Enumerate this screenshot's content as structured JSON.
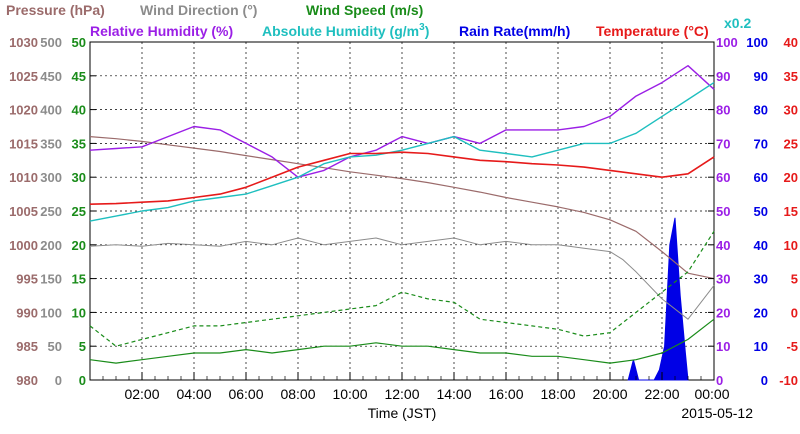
{
  "chart_data": {
    "type": "line",
    "title": "",
    "xlabel": "Time (JST)",
    "date_label": "2015-05-12",
    "legend": {
      "pressure": "Pressure (hPa)",
      "wind_direction": "Wind Direction (°)",
      "wind_speed": "Wind Speed (m/s)",
      "rel_humidity": "Relative Humidity (%)",
      "abs_humidity": "Absolute Humidity (g/m",
      "abs_humidity_exp": "3",
      "abs_humidity_close": ")",
      "rain_rate": "Rain Rate(mm/h)",
      "temperature": "Temperature (°C)",
      "scale_note": "x0.2"
    },
    "colors": {
      "pressure": "#9b6b6b",
      "wind_direction": "#8c8c8c",
      "wind_speed": "#1a8c1a",
      "rel_humidity": "#9b1fe6",
      "abs_humidity": "#1fbfbf",
      "rain_rate": "#0000e6",
      "temperature": "#e61a1a"
    },
    "x_ticks": [
      "02:00",
      "04:00",
      "06:00",
      "08:00",
      "10:00",
      "12:00",
      "14:00",
      "16:00",
      "18:00",
      "20:00",
      "22:00",
      "00:00"
    ],
    "x_range_hours": [
      0,
      24
    ],
    "axes": {
      "pressure": {
        "range": [
          980,
          1030
        ],
        "ticks": [
          "1030",
          "1025",
          "1020",
          "1015",
          "1010",
          "1005",
          "1000",
          "995",
          "990",
          "985",
          "980"
        ]
      },
      "wind_direction": {
        "range": [
          0,
          500
        ],
        "ticks": [
          "500",
          "450",
          "400",
          "350",
          "300",
          "250",
          "200",
          "150",
          "100",
          "50",
          "0"
        ]
      },
      "wind_speed": {
        "range": [
          0,
          50
        ],
        "ticks": [
          "50",
          "45",
          "40",
          "35",
          "30",
          "25",
          "20",
          "15",
          "10",
          "5",
          "0"
        ]
      },
      "rel_humidity": {
        "range": [
          0,
          100
        ],
        "ticks": [
          "100",
          "90",
          "80",
          "70",
          "60",
          "50",
          "40",
          "30",
          "20",
          "10",
          "0"
        ]
      },
      "rain_rate": {
        "range": [
          0,
          100
        ],
        "ticks": [
          "100",
          "90",
          "80",
          "70",
          "60",
          "50",
          "40",
          "30",
          "20",
          "10",
          "0"
        ]
      },
      "temperature": {
        "range": [
          -10,
          40
        ],
        "ticks": [
          "40",
          "35",
          "30",
          "25",
          "20",
          "15",
          "10",
          "5",
          "0",
          "-5",
          "-10"
        ]
      }
    },
    "series": [
      {
        "name": "Pressure (hPa)",
        "key": "pressure",
        "axis": "pressure",
        "x": [
          0,
          1,
          2,
          3,
          4,
          5,
          6,
          7,
          8,
          9,
          10,
          11,
          12,
          13,
          14,
          15,
          16,
          17,
          18,
          19,
          20,
          21,
          22,
          23,
          24
        ],
        "y": [
          1016,
          1015.7,
          1015.3,
          1014.8,
          1014.3,
          1013.8,
          1013.2,
          1012.6,
          1012,
          1011.4,
          1010.8,
          1010.3,
          1009.8,
          1009.2,
          1008.5,
          1007.8,
          1007,
          1006.3,
          1005.6,
          1004.8,
          1003.7,
          1002,
          999,
          995.8,
          995
        ]
      },
      {
        "name": "Wind Direction (°)",
        "key": "wind_direction",
        "axis": "wind_direction",
        "x": [
          0,
          1,
          2,
          3,
          4,
          5,
          6,
          7,
          8,
          9,
          10,
          11,
          12,
          13,
          14,
          15,
          16,
          17,
          18,
          19,
          20,
          20.5,
          21,
          22,
          23,
          24
        ],
        "y": [
          198,
          200,
          198,
          202,
          200,
          198,
          205,
          200,
          210,
          200,
          205,
          210,
          200,
          205,
          210,
          200,
          205,
          200,
          200,
          195,
          190,
          178,
          160,
          120,
          90,
          140
        ]
      },
      {
        "name": "Wind Speed (m/s)",
        "key": "wind_speed",
        "axis": "wind_speed",
        "x": [
          0,
          1,
          2,
          3,
          4,
          5,
          6,
          7,
          8,
          9,
          10,
          11,
          12,
          13,
          14,
          15,
          16,
          17,
          18,
          19,
          20,
          21,
          22,
          23,
          24
        ],
        "y": [
          3,
          2.5,
          3,
          3.5,
          4,
          4,
          4.5,
          4,
          4.5,
          5,
          5,
          5.5,
          5,
          5,
          4.5,
          4,
          4,
          3.5,
          3.5,
          3,
          2.5,
          3,
          4,
          6,
          9
        ]
      },
      {
        "name": "Wind Speed (m/s)",
        "key": "wind_speed_max",
        "axis": "wind_speed",
        "x": [
          0,
          1,
          2,
          3,
          4,
          5,
          6,
          7,
          8,
          9,
          10,
          11,
          12,
          13,
          14,
          15,
          16,
          17,
          18,
          19,
          20,
          21,
          22,
          23,
          24
        ],
        "y": [
          8,
          5,
          6,
          7,
          8,
          8,
          8.5,
          9,
          9.5,
          10,
          10.5,
          11,
          13,
          12,
          11.5,
          9,
          8.5,
          8,
          7.5,
          6.5,
          7,
          10,
          13,
          16,
          22
        ]
      },
      {
        "name": "Relative Humidity (%)",
        "key": "rel_humidity",
        "axis": "rel_humidity",
        "x": [
          0,
          1,
          2,
          3,
          4,
          5,
          6,
          7,
          8,
          9,
          10,
          11,
          12,
          13,
          14,
          15,
          16,
          17,
          18,
          19,
          20,
          21,
          22,
          23,
          24
        ],
        "y": [
          68,
          68.5,
          69,
          72,
          75,
          74,
          70,
          66,
          60,
          62,
          66,
          68,
          72,
          70,
          72,
          70,
          74,
          74,
          74,
          75,
          78,
          84,
          88,
          93,
          86
        ]
      },
      {
        "name": "",
        "key": "abs_humidity",
        "axis": "rel_humidity",
        "x": [
          0,
          1,
          2,
          3,
          4,
          5,
          6,
          7,
          8,
          9,
          10,
          11,
          12,
          13,
          14,
          15,
          16,
          17,
          18,
          19,
          20,
          21,
          22,
          23,
          24
        ],
        "y": [
          47,
          48.5,
          50,
          51,
          53,
          54,
          55,
          57.5,
          60,
          64,
          66,
          66.5,
          68,
          70,
          72,
          68,
          67,
          66,
          68,
          70,
          70,
          73,
          78,
          83,
          88
        ]
      },
      {
        "name": "Temperature (°C)",
        "key": "temperature",
        "axis": "temperature",
        "x": [
          0,
          1,
          2,
          3,
          4,
          5,
          6,
          7,
          8,
          9,
          10,
          11,
          12,
          13,
          14,
          15,
          16,
          17,
          18,
          19,
          20,
          21,
          22,
          23,
          24
        ],
        "y": [
          16,
          16.1,
          16.3,
          16.5,
          17,
          17.5,
          18.5,
          20,
          21.5,
          22.5,
          23.5,
          23.5,
          23.7,
          23.5,
          23,
          22.5,
          22.3,
          22,
          21.8,
          21.5,
          21,
          20.5,
          20,
          20.5,
          23
        ]
      }
    ],
    "rain_rate": {
      "name": "Rain Rate(mm/h)",
      "axis": "rain_rate",
      "x": [
        20.7,
        20.9,
        21.1,
        21.7,
        21.9,
        22.1,
        22.3,
        22.5,
        22.7,
        22.9,
        23.0
      ],
      "y": [
        0,
        6,
        0,
        0,
        3,
        10,
        40,
        48,
        25,
        8,
        0
      ]
    },
    "grid": true,
    "legend_placement": "top"
  }
}
